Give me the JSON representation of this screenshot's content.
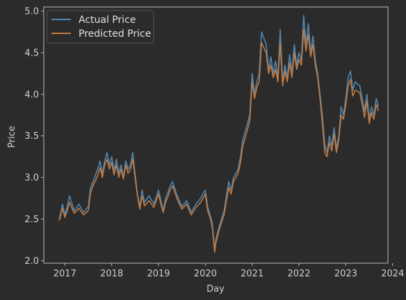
{
  "chart_data": {
    "type": "line",
    "title": "",
    "xlabel": "Day",
    "ylabel": "Price",
    "xlim": [
      2016.55,
      2023.9
    ],
    "ylim": [
      1.97,
      5.05
    ],
    "x_ticks": [
      2017,
      2018,
      2019,
      2020,
      2021,
      2022,
      2023,
      2024
    ],
    "x_tick_labels": [
      "2017",
      "2018",
      "2019",
      "2020",
      "2021",
      "2022",
      "2023",
      "2024"
    ],
    "y_ticks": [
      2.0,
      2.5,
      3.0,
      3.5,
      4.0,
      4.5,
      5.0
    ],
    "y_tick_labels": [
      "2.0",
      "2.5",
      "3.0",
      "3.5",
      "4.0",
      "4.5",
      "5.0"
    ],
    "grid": false,
    "legend": "top-left",
    "series": [
      {
        "name": "Actual Price",
        "color": "#4f86b0",
        "x": [
          2016.88,
          2016.95,
          2017.0,
          2017.05,
          2017.1,
          2017.2,
          2017.3,
          2017.4,
          2017.5,
          2017.55,
          2017.6,
          2017.7,
          2017.75,
          2017.8,
          2017.85,
          2017.9,
          2017.95,
          2018.0,
          2018.05,
          2018.1,
          2018.15,
          2018.2,
          2018.25,
          2018.3,
          2018.35,
          2018.4,
          2018.45,
          2018.5,
          2018.55,
          2018.6,
          2018.65,
          2018.7,
          2018.8,
          2018.9,
          2019.0,
          2019.05,
          2019.1,
          2019.15,
          2019.2,
          2019.25,
          2019.3,
          2019.4,
          2019.5,
          2019.6,
          2019.7,
          2019.8,
          2019.9,
          2020.0,
          2020.05,
          2020.1,
          2020.15,
          2020.2,
          2020.22,
          2020.3,
          2020.4,
          2020.45,
          2020.5,
          2020.55,
          2020.6,
          2020.7,
          2020.75,
          2020.8,
          2020.85,
          2020.9,
          2020.95,
          2021.0,
          2021.05,
          2021.1,
          2021.15,
          2021.2,
          2021.3,
          2021.35,
          2021.4,
          2021.45,
          2021.5,
          2021.55,
          2021.6,
          2021.65,
          2021.7,
          2021.75,
          2021.8,
          2021.85,
          2021.9,
          2021.95,
          2022.0,
          2022.05,
          2022.1,
          2022.15,
          2022.2,
          2022.25,
          2022.3,
          2022.35,
          2022.4,
          2022.45,
          2022.5,
          2022.55,
          2022.6,
          2022.65,
          2022.7,
          2022.75,
          2022.8,
          2022.85,
          2022.9,
          2022.95,
          2023.0,
          2023.05,
          2023.1,
          2023.15,
          2023.2,
          2023.3,
          2023.35,
          2023.4,
          2023.45,
          2023.5,
          2023.55,
          2023.6,
          2023.65,
          2023.7
        ],
        "values": [
          2.5,
          2.68,
          2.55,
          2.65,
          2.78,
          2.6,
          2.68,
          2.58,
          2.65,
          2.88,
          2.95,
          3.1,
          3.2,
          3.05,
          3.2,
          3.3,
          3.15,
          3.25,
          3.08,
          3.22,
          3.05,
          3.15,
          3.0,
          3.2,
          3.1,
          3.15,
          3.3,
          3.05,
          2.8,
          2.65,
          2.85,
          2.7,
          2.78,
          2.68,
          2.85,
          2.72,
          2.6,
          2.75,
          2.82,
          2.9,
          2.95,
          2.78,
          2.65,
          2.72,
          2.58,
          2.68,
          2.75,
          2.85,
          2.65,
          2.55,
          2.45,
          2.12,
          2.25,
          2.42,
          2.6,
          2.78,
          2.95,
          2.85,
          3.0,
          3.1,
          3.25,
          3.45,
          3.55,
          3.65,
          3.75,
          4.25,
          4.0,
          4.15,
          4.25,
          4.75,
          4.6,
          4.3,
          4.45,
          4.25,
          4.4,
          4.2,
          4.78,
          4.15,
          4.35,
          4.2,
          4.48,
          4.25,
          4.6,
          4.35,
          4.5,
          4.4,
          4.95,
          4.6,
          4.85,
          4.5,
          4.7,
          4.4,
          4.25,
          4.0,
          3.75,
          3.4,
          3.3,
          3.5,
          3.38,
          3.6,
          3.35,
          3.5,
          3.85,
          3.75,
          3.95,
          4.2,
          4.28,
          4.05,
          4.15,
          4.1,
          3.95,
          3.8,
          4.0,
          3.7,
          3.85,
          3.75,
          3.95,
          3.85
        ]
      },
      {
        "name": "Predicted Price",
        "color": "#c47a3f",
        "x": [
          2016.88,
          2016.95,
          2017.0,
          2017.05,
          2017.1,
          2017.2,
          2017.3,
          2017.4,
          2017.5,
          2017.55,
          2017.6,
          2017.7,
          2017.75,
          2017.8,
          2017.85,
          2017.9,
          2017.95,
          2018.0,
          2018.05,
          2018.1,
          2018.15,
          2018.2,
          2018.25,
          2018.3,
          2018.35,
          2018.4,
          2018.45,
          2018.5,
          2018.55,
          2018.6,
          2018.65,
          2018.7,
          2018.8,
          2018.9,
          2019.0,
          2019.05,
          2019.1,
          2019.15,
          2019.2,
          2019.25,
          2019.3,
          2019.4,
          2019.5,
          2019.6,
          2019.7,
          2019.8,
          2019.9,
          2020.0,
          2020.05,
          2020.1,
          2020.15,
          2020.2,
          2020.22,
          2020.3,
          2020.4,
          2020.45,
          2020.5,
          2020.55,
          2020.6,
          2020.7,
          2020.75,
          2020.8,
          2020.85,
          2020.9,
          2020.95,
          2021.0,
          2021.05,
          2021.1,
          2021.15,
          2021.2,
          2021.3,
          2021.35,
          2021.4,
          2021.45,
          2021.5,
          2021.55,
          2021.6,
          2021.65,
          2021.7,
          2021.75,
          2021.8,
          2021.85,
          2021.9,
          2021.95,
          2022.0,
          2022.05,
          2022.1,
          2022.15,
          2022.2,
          2022.25,
          2022.3,
          2022.35,
          2022.4,
          2022.45,
          2022.5,
          2022.55,
          2022.6,
          2022.65,
          2022.7,
          2022.75,
          2022.8,
          2022.85,
          2022.9,
          2022.95,
          2023.0,
          2023.05,
          2023.1,
          2023.15,
          2023.2,
          2023.3,
          2023.35,
          2023.4,
          2023.45,
          2023.5,
          2023.55,
          2023.6,
          2023.65,
          2023.7
        ],
        "values": [
          2.48,
          2.63,
          2.52,
          2.6,
          2.7,
          2.57,
          2.63,
          2.55,
          2.6,
          2.82,
          2.9,
          3.02,
          3.12,
          3.0,
          3.15,
          3.22,
          3.1,
          3.18,
          3.03,
          3.15,
          3.0,
          3.1,
          2.98,
          3.15,
          3.05,
          3.1,
          3.22,
          3.0,
          2.78,
          2.62,
          2.78,
          2.66,
          2.72,
          2.64,
          2.8,
          2.68,
          2.58,
          2.7,
          2.77,
          2.85,
          2.9,
          2.74,
          2.62,
          2.68,
          2.55,
          2.64,
          2.7,
          2.8,
          2.6,
          2.52,
          2.4,
          2.1,
          2.2,
          2.38,
          2.55,
          2.72,
          2.88,
          2.8,
          2.95,
          3.05,
          3.18,
          3.38,
          3.48,
          3.58,
          3.68,
          4.15,
          3.95,
          4.08,
          4.15,
          4.62,
          4.5,
          4.25,
          4.35,
          4.2,
          4.3,
          4.15,
          4.62,
          4.1,
          4.28,
          4.15,
          4.38,
          4.2,
          4.5,
          4.3,
          4.42,
          4.35,
          4.78,
          4.52,
          4.72,
          4.45,
          4.6,
          4.35,
          4.2,
          3.95,
          3.65,
          3.3,
          3.25,
          3.42,
          3.32,
          3.52,
          3.3,
          3.45,
          3.75,
          3.7,
          3.88,
          4.1,
          4.18,
          3.98,
          4.05,
          4.02,
          3.88,
          3.72,
          3.92,
          3.65,
          3.78,
          3.7,
          3.88,
          3.8
        ]
      }
    ]
  }
}
